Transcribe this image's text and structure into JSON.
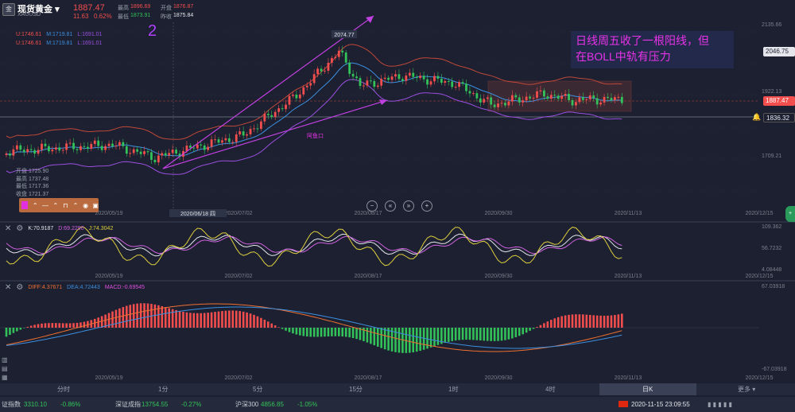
{
  "header": {
    "symbol_name": "现货黄金",
    "dropdown_mark": "▾",
    "symbol_code": "XAUUSD",
    "last_price": "1887.47",
    "change": "11.63",
    "change_pct": "0.62%",
    "high_label": "最高",
    "high": "1896.69",
    "open_label": "开盘",
    "open": "1876.87",
    "low_label": "最低",
    "low": "1873.91",
    "prev_close_label": "昨收",
    "prev_close": "1875.84"
  },
  "boll_lines": [
    {
      "u": "U:1746.61",
      "m": "M:1719.81",
      "l": "L:1691.01"
    },
    {
      "u": "U:1746.61",
      "m": "M:1719.81",
      "l": "L:1691.01"
    }
  ],
  "annotation_number": "2",
  "annotation_text_line1": "日线周五收了一根阳线，但",
  "annotation_text_line2": "在BOLL中轨有压力",
  "peak_label": "2074.77",
  "small_label": "阿鱼口",
  "price_axis": {
    "ticks": [
      "2135.66",
      "1922.13",
      "1709.21"
    ],
    "tag_2046": "2046.75",
    "tag_last": "1887.47",
    "tag_1836": "1836.32"
  },
  "ohlc_box": {
    "open": "开盘 1725.90",
    "high": "最高 1737.48",
    "low": "最低 1717.36",
    "close": "收盘 1721.37"
  },
  "x_axis": {
    "labels": [
      "2020/05/19",
      "2020/07/02",
      "2020/08/17",
      "2020/09/30",
      "2020/11/13",
      "2020/12/15"
    ],
    "crosshair_date": "2020/06/18 四"
  },
  "kdj": {
    "k": "K:70.9187",
    "d": "D:69.2290",
    "j": "J:74.3042",
    "ticks": [
      "109.362",
      "56.7232",
      "4.08448"
    ]
  },
  "macd": {
    "diff": "DIFF:4.37671",
    "dea": "DEA:4.72443",
    "macd": "MACD:-0.69545",
    "ticks": [
      "67.03918",
      "-67.03918"
    ]
  },
  "timeframes": [
    "分时",
    "1分",
    "5分",
    "15分",
    "1时",
    "4时",
    "日K",
    "更多"
  ],
  "timeframe_marks": {
    "more": "▾"
  },
  "active_timeframe": "日K",
  "status_bar": {
    "idx1_name": "证指数",
    "idx1_value": "3310.10",
    "idx1_pct": "-0.86%",
    "idx2_name": "深证成指",
    "idx2_value": "13754.55",
    "idx2_pct": "-0.27%",
    "idx3_name": "沪深300",
    "idx3_value": "4856.85",
    "idx3_pct": "-1.05%",
    "datetime": "2020-11-15 23:09:55"
  },
  "colors": {
    "background": "#1c2030",
    "up": "#f24e4e",
    "down": "#33c15a",
    "boll_upper": "#c0483a",
    "boll_mid": "#3d8fe0",
    "boll_lower": "#9b4fe0",
    "annotation": "#e832e8"
  }
}
